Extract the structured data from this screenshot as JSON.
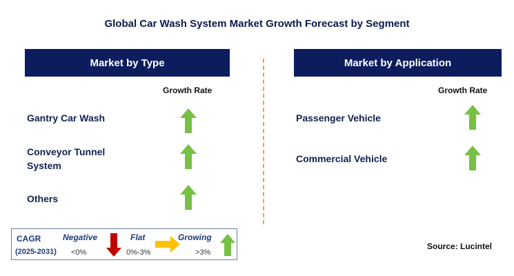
{
  "title": "Global Car Wash System Market Growth Forecast by Segment",
  "left_panel": {
    "header": "Market by Type",
    "growth_label": "Growth Rate",
    "segments": [
      {
        "label_lines": [
          "Gantry Car Wash"
        ],
        "trend": "growing"
      },
      {
        "label_lines": [
          "Conveyor Tunnel",
          "System"
        ],
        "trend": "growing"
      },
      {
        "label_lines": [
          "Others"
        ],
        "trend": "growing"
      }
    ]
  },
  "right_panel": {
    "header": "Market by Application",
    "growth_label": "Growth Rate",
    "segments": [
      {
        "label_lines": [
          "Passenger Vehicle"
        ],
        "trend": "growing"
      },
      {
        "label_lines": [
          "Commercial Vehicle"
        ],
        "trend": "growing"
      }
    ]
  },
  "legend": {
    "cagr": "CAGR",
    "period": "(2025-2031)",
    "negative": {
      "label": "Negative",
      "range": "<0%"
    },
    "flat": {
      "label": "Flat",
      "range": "0%-3%"
    },
    "growing": {
      "label": "Growing",
      "range": ">3%"
    }
  },
  "source": "Source: Lucintel",
  "colors": {
    "header_bg": "#0c1c5c",
    "growing_arrow": "#76c043",
    "negative_arrow": "#c00000",
    "flat_arrow": "#ffc000",
    "divider": "#f0a81c"
  }
}
